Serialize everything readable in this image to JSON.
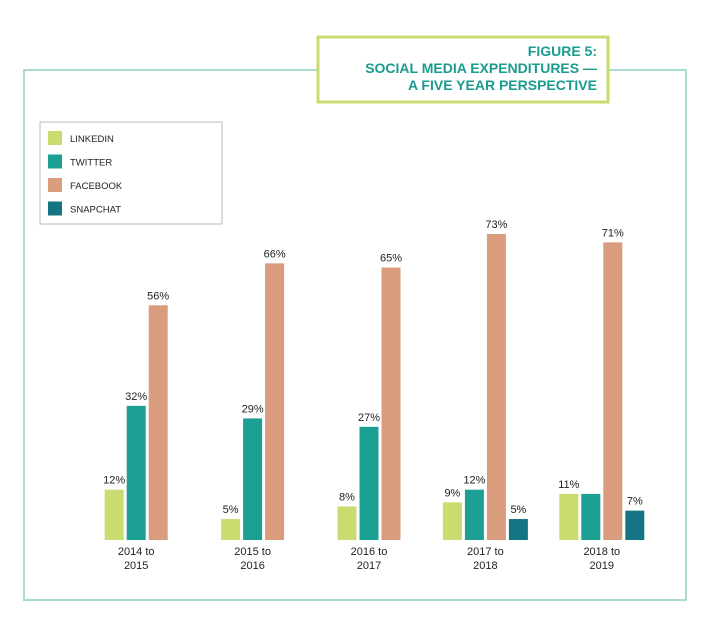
{
  "chart_data": {
    "type": "bar",
    "title_lines": [
      "FIGURE 5:",
      "SOCIAL MEDIA EXPENDITURES —",
      "A FIVE YEAR PERSPECTIVE"
    ],
    "categories": [
      "2014 to 2015",
      "2015 to 2016",
      "2016 to 2017",
      "2017 to 2018",
      "2018 to 2019"
    ],
    "series": [
      {
        "name": "LINKEDIN",
        "color": "#c9dc6f",
        "values": [
          12,
          5,
          8,
          9,
          11
        ],
        "value_labels": [
          "12%",
          "5%",
          "8%",
          "9%",
          "11%"
        ]
      },
      {
        "name": "TWITTER",
        "color": "#1ba093",
        "values": [
          32,
          29,
          27,
          12,
          11
        ],
        "value_labels": [
          "32%",
          "29%",
          "27%",
          "12%",
          null
        ]
      },
      {
        "name": "FACEBOOK",
        "color": "#d99c7c",
        "values": [
          56,
          66,
          65,
          73,
          71
        ],
        "value_labels": [
          "56%",
          "66%",
          "65%",
          "73%",
          "71%"
        ]
      },
      {
        "name": "SNAPCHAT",
        "color": "#137583",
        "values": [
          null,
          null,
          null,
          5,
          7
        ],
        "value_labels": [
          null,
          null,
          null,
          "5%",
          "7%"
        ]
      }
    ],
    "legend": "top-left"
  }
}
